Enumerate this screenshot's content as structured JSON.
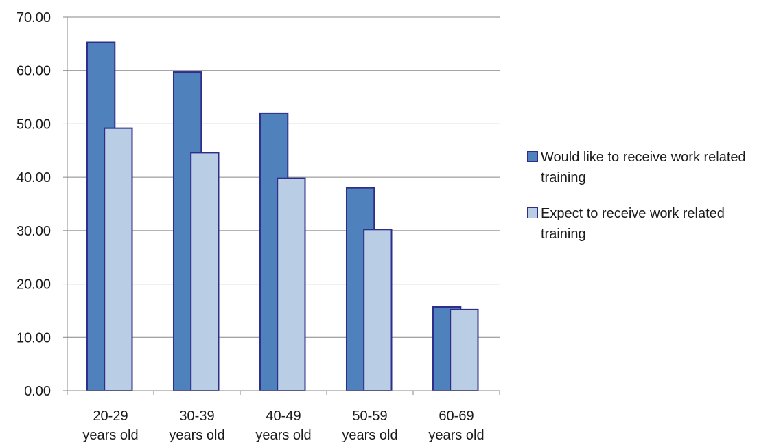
{
  "chart_data": {
    "type": "bar",
    "title": "",
    "xlabel": "",
    "ylabel": "",
    "ylim": [
      0,
      70
    ],
    "y_ticks": [
      "0.00",
      "10.00",
      "20.00",
      "30.00",
      "40.00",
      "50.00",
      "60.00",
      "70.00"
    ],
    "categories": [
      [
        "20-29",
        "years old"
      ],
      [
        "30-39",
        "years old"
      ],
      [
        "40-49",
        "years old"
      ],
      [
        "50-59",
        "years old"
      ],
      [
        "60-69",
        "years old"
      ]
    ],
    "series": [
      {
        "name": "Would like to receive work related training",
        "values": [
          65.3,
          59.7,
          52.0,
          38.0,
          15.7
        ],
        "color": "#4f81bd"
      },
      {
        "name": "Expect to receive work related training",
        "values": [
          49.2,
          44.6,
          39.8,
          30.2,
          15.2
        ],
        "color": "#b9cde5"
      }
    ],
    "border_color": "#2e2e8a",
    "grid": true,
    "legend_position": "right"
  }
}
